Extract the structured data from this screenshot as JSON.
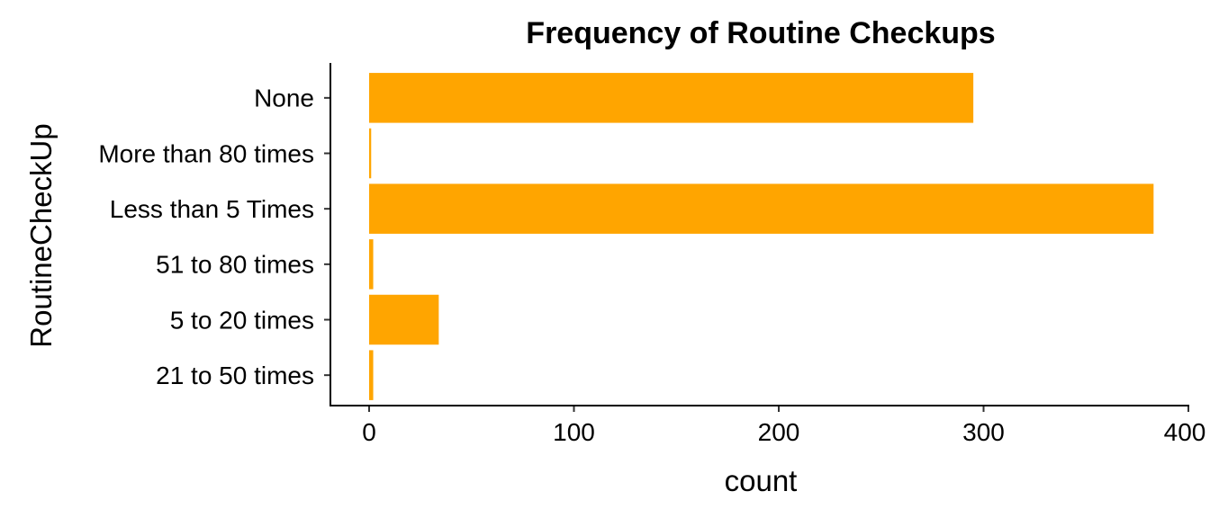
{
  "chart_data": {
    "type": "bar",
    "orientation": "horizontal",
    "title": "Frequency of Routine Checkups",
    "xlabel": "count",
    "ylabel": "RoutineCheckUp",
    "categories": [
      "None",
      "More than 80 times",
      "Less than 5 Times",
      "51 to 80 times",
      "5 to 20 times",
      "21 to 50 times"
    ],
    "values": [
      295,
      1,
      383,
      2,
      34,
      2
    ],
    "xlim": [
      0,
      400
    ],
    "xticks": [
      0,
      100,
      200,
      300,
      400
    ],
    "bar_color": "#FFA500",
    "grid": false,
    "legend": "none"
  }
}
